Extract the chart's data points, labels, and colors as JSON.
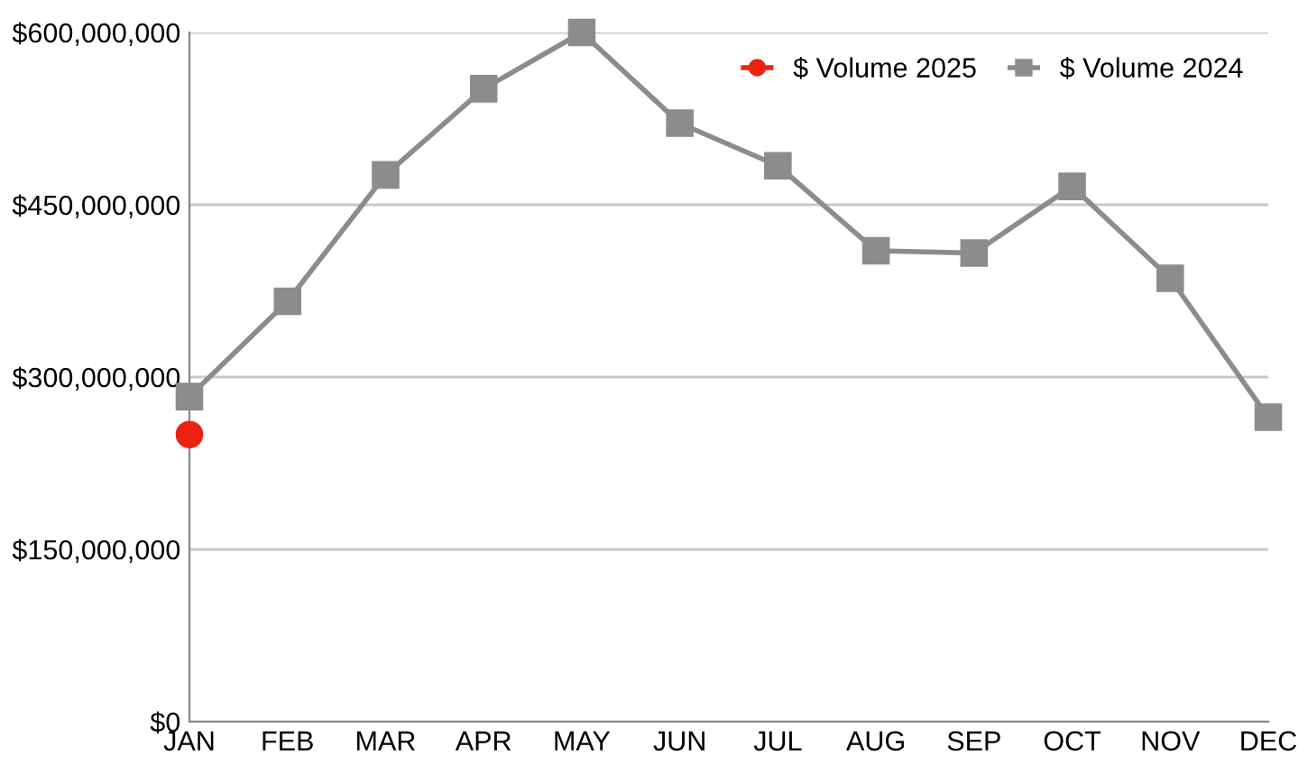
{
  "chart_data": {
    "type": "line",
    "categories": [
      "JAN",
      "FEB",
      "MAR",
      "APR",
      "MAY",
      "JUN",
      "JUL",
      "AUG",
      "SEP",
      "OCT",
      "NOV",
      "DEC"
    ],
    "series": [
      {
        "name": "$ Volume 2025",
        "color": "#ee2211",
        "marker": "circle",
        "values": [
          250000000,
          null,
          null,
          null,
          null,
          null,
          null,
          null,
          null,
          null,
          null,
          null
        ]
      },
      {
        "name": "$ Volume 2024",
        "color": "#8c8c8c",
        "marker": "square",
        "values": [
          283000000,
          366000000,
          476000000,
          551000000,
          600000000,
          521000000,
          484000000,
          410000000,
          408000000,
          466000000,
          386000000,
          265000000
        ]
      }
    ],
    "ylim": [
      0,
      600000000
    ],
    "yticks": [
      {
        "value": 0,
        "label": "$0"
      },
      {
        "value": 150000000,
        "label": "$150,000,000"
      },
      {
        "value": 300000000,
        "label": "$300,000,000"
      },
      {
        "value": 450000000,
        "label": "$450,000,000"
      },
      {
        "value": 600000000,
        "label": "$600,000,000"
      }
    ],
    "grid": "y",
    "legend": "top right"
  }
}
